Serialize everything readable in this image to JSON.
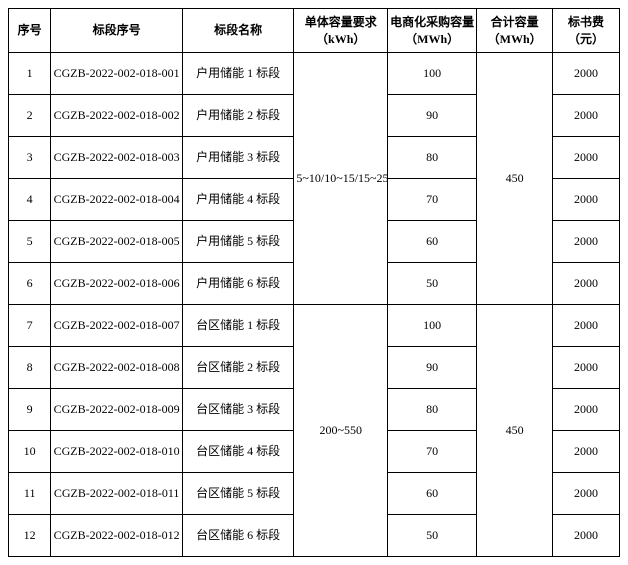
{
  "headers": {
    "seq": "序号",
    "code": "标段序号",
    "name": "标段名称",
    "unit": "单体容量要求（kWh）",
    "ecom": "电商化采购容量（MWh）",
    "total": "合计容量（MWh）",
    "fee": "标书费（元）"
  },
  "groups": [
    {
      "unit_req": "5~10/10~15/15~25",
      "total_capacity": "450",
      "rows": [
        {
          "seq": "1",
          "code": "CGZB-2022-002-018-001",
          "name": "户用储能 1 标段",
          "ecom": "100",
          "fee": "2000"
        },
        {
          "seq": "2",
          "code": "CGZB-2022-002-018-002",
          "name": "户用储能 2 标段",
          "ecom": "90",
          "fee": "2000"
        },
        {
          "seq": "3",
          "code": "CGZB-2022-002-018-003",
          "name": "户用储能 3 标段",
          "ecom": "80",
          "fee": "2000"
        },
        {
          "seq": "4",
          "code": "CGZB-2022-002-018-004",
          "name": "户用储能 4 标段",
          "ecom": "70",
          "fee": "2000"
        },
        {
          "seq": "5",
          "code": "CGZB-2022-002-018-005",
          "name": "户用储能 5 标段",
          "ecom": "60",
          "fee": "2000"
        },
        {
          "seq": "6",
          "code": "CGZB-2022-002-018-006",
          "name": "户用储能 6 标段",
          "ecom": "50",
          "fee": "2000"
        }
      ]
    },
    {
      "unit_req": "200~550",
      "total_capacity": "450",
      "rows": [
        {
          "seq": "7",
          "code": "CGZB-2022-002-018-007",
          "name": "台区储能 1 标段",
          "ecom": "100",
          "fee": "2000"
        },
        {
          "seq": "8",
          "code": "CGZB-2022-002-018-008",
          "name": "台区储能 2 标段",
          "ecom": "90",
          "fee": "2000"
        },
        {
          "seq": "9",
          "code": "CGZB-2022-002-018-009",
          "name": "台区储能 3 标段",
          "ecom": "80",
          "fee": "2000"
        },
        {
          "seq": "10",
          "code": "CGZB-2022-002-018-010",
          "name": "台区储能 4 标段",
          "ecom": "70",
          "fee": "2000"
        },
        {
          "seq": "11",
          "code": "CGZB-2022-002-018-011",
          "name": "台区储能 5 标段",
          "ecom": "60",
          "fee": "2000"
        },
        {
          "seq": "12",
          "code": "CGZB-2022-002-018-012",
          "name": "台区储能 6 标段",
          "ecom": "50",
          "fee": "2000"
        }
      ]
    }
  ]
}
